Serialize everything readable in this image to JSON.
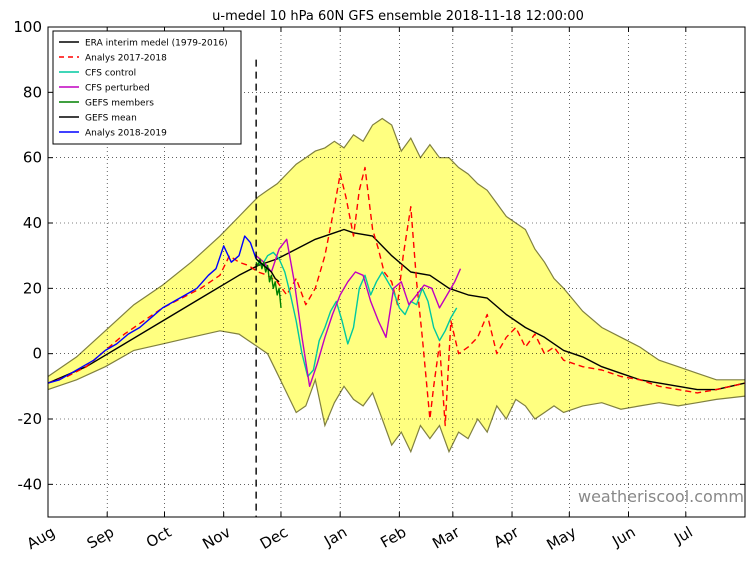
{
  "chart_data": {
    "type": "line",
    "title": "u-medel 10 hPa 60N GFS ensemble 2018-11-18 12:00:00",
    "xlabel": "",
    "ylabel": "",
    "ylim": [
      -50,
      100
    ],
    "xlim": [
      0,
      365
    ],
    "yticks": [
      -40,
      -20,
      0,
      20,
      40,
      60,
      80,
      100
    ],
    "month_ticks": [
      {
        "label": "Aug",
        "day": 0
      },
      {
        "label": "Sep",
        "day": 31
      },
      {
        "label": "Oct",
        "day": 61
      },
      {
        "label": "Nov",
        "day": 92
      },
      {
        "label": "Dec",
        "day": 122
      },
      {
        "label": "Jan",
        "day": 153
      },
      {
        "label": "Feb",
        "day": 184
      },
      {
        "label": "Mar",
        "day": 212
      },
      {
        "label": "Apr",
        "day": 243
      },
      {
        "label": "May",
        "day": 273
      },
      {
        "label": "Jun",
        "day": 304
      },
      {
        "label": "Jul",
        "day": 334
      }
    ],
    "grid": true,
    "forecast_day": 109,
    "legend_position": "top-left",
    "colors": {
      "band_fill": "#ffff80",
      "band_edge": "#808040",
      "era": "#000000",
      "analys_2017": "#ff0000",
      "cfs_control": "#00c8a0",
      "cfs_perturbed": "#c000c0",
      "gefs_members": "#008000",
      "gefs_mean": "#000000",
      "analys_2018": "#0000ff"
    },
    "band": {
      "x": [
        0,
        15,
        30,
        45,
        60,
        75,
        90,
        100,
        105,
        110,
        115,
        120,
        125,
        130,
        135,
        140,
        145,
        150,
        155,
        160,
        165,
        170,
        175,
        180,
        185,
        190,
        195,
        200,
        205,
        210,
        215,
        220,
        225,
        230,
        235,
        240,
        245,
        250,
        255,
        260,
        265,
        270,
        280,
        290,
        300,
        310,
        320,
        330,
        340,
        350,
        365
      ],
      "upper": [
        -7,
        -1,
        7,
        15,
        21,
        28,
        36,
        42,
        45,
        48,
        50,
        52,
        55,
        58,
        60,
        62,
        63,
        65,
        63,
        67,
        65,
        70,
        72,
        70,
        62,
        66,
        60,
        64,
        60,
        60,
        57,
        55,
        52,
        50,
        46,
        42,
        40,
        38,
        32,
        28,
        23,
        20,
        13,
        8,
        5,
        2,
        -2,
        -4,
        -6,
        -8,
        -8
      ],
      "lower": [
        -11,
        -8,
        -4,
        1,
        3,
        5,
        7,
        6,
        4,
        2,
        0,
        -6,
        -12,
        -18,
        -16,
        -8,
        -22,
        -15,
        -10,
        -14,
        -16,
        -12,
        -20,
        -28,
        -24,
        -30,
        -22,
        -26,
        -22,
        -30,
        -24,
        -26,
        -20,
        -24,
        -16,
        -20,
        -14,
        -16,
        -20,
        -18,
        -16,
        -18,
        -16,
        -15,
        -17,
        -16,
        -15,
        -16,
        -15,
        -14,
        -13
      ]
    },
    "series": [
      {
        "name": "ERA interim medel (1979-2016)",
        "style": "solid",
        "colorKey": "era",
        "x": [
          0,
          20,
          40,
          60,
          80,
          100,
          110,
          120,
          130,
          140,
          150,
          155,
          160,
          170,
          180,
          190,
          200,
          210,
          220,
          230,
          240,
          250,
          260,
          270,
          280,
          290,
          300,
          310,
          320,
          330,
          340,
          350,
          365
        ],
        "values": [
          -9,
          -4,
          3,
          10,
          17,
          24,
          27,
          29,
          32,
          35,
          37,
          38,
          37,
          36,
          30,
          25,
          24,
          20,
          18,
          17,
          12,
          8,
          5,
          1,
          -1,
          -4,
          -6,
          -8,
          -9,
          -10,
          -11,
          -11,
          -9
        ]
      },
      {
        "name": "Analys 2017-2018",
        "style": "dashed",
        "colorKey": "analys_2017",
        "x": [
          0,
          10,
          20,
          30,
          40,
          50,
          60,
          70,
          80,
          90,
          95,
          100,
          105,
          110,
          115,
          120,
          125,
          130,
          135,
          140,
          145,
          150,
          153,
          156,
          160,
          163,
          166,
          170,
          173,
          176,
          180,
          183,
          186,
          190,
          193,
          196,
          200,
          202,
          205,
          208,
          211,
          215,
          220,
          225,
          230,
          235,
          240,
          245,
          250,
          255,
          260,
          265,
          270,
          280,
          290,
          300,
          310,
          320,
          330,
          340,
          350,
          365
        ],
        "values": [
          -9,
          -7,
          -4,
          1,
          6,
          10,
          14,
          17,
          20,
          24,
          30,
          28,
          27,
          25,
          24,
          22,
          18,
          23,
          15,
          20,
          30,
          45,
          55,
          48,
          36,
          50,
          57,
          38,
          32,
          25,
          22,
          15,
          30,
          45,
          22,
          5,
          -20,
          -10,
          3,
          -22,
          10,
          0,
          2,
          5,
          12,
          0,
          5,
          8,
          2,
          6,
          0,
          2,
          -2,
          -4,
          -5,
          -7,
          -8,
          -10,
          -11,
          -12,
          -11,
          -9
        ]
      },
      {
        "name": "CFS control",
        "style": "solid",
        "colorKey": "cfs_control",
        "x": [
          109,
          112,
          115,
          118,
          121,
          124,
          127,
          130,
          133,
          136,
          139,
          142,
          145,
          148,
          151,
          154,
          157,
          160,
          163,
          166,
          169,
          172,
          175,
          178,
          181,
          184,
          187,
          190,
          193,
          196,
          199,
          202,
          205,
          208,
          211,
          214
        ],
        "values": [
          29,
          27,
          30,
          31,
          29,
          25,
          18,
          10,
          0,
          -7,
          -5,
          4,
          8,
          13,
          16,
          10,
          3,
          8,
          20,
          24,
          18,
          22,
          25,
          22,
          19,
          14,
          12,
          16,
          15,
          20,
          16,
          8,
          4,
          7,
          11,
          14
        ]
      },
      {
        "name": "CFS perturbed",
        "style": "solid",
        "colorKey": "cfs_perturbed",
        "x": [
          109,
          113,
          117,
          121,
          125,
          129,
          133,
          137,
          141,
          145,
          149,
          153,
          157,
          161,
          165,
          169,
          173,
          177,
          181,
          185,
          189,
          193,
          197,
          201,
          205,
          209,
          213,
          216
        ],
        "values": [
          30,
          28,
          25,
          32,
          35,
          22,
          5,
          -10,
          -3,
          5,
          12,
          18,
          22,
          25,
          24,
          16,
          10,
          5,
          20,
          22,
          15,
          18,
          21,
          20,
          14,
          18,
          22,
          26
        ]
      },
      {
        "name": "GEFS members",
        "style": "solid",
        "colorKey": "gefs_members",
        "x": [
          109,
          110,
          111,
          112,
          113,
          114,
          115,
          116,
          117,
          118,
          119,
          120,
          121,
          122
        ],
        "values": [
          28,
          27,
          29,
          26,
          28,
          25,
          27,
          22,
          24,
          20,
          22,
          18,
          20,
          14
        ]
      },
      {
        "name": "GEFS mean",
        "style": "solid",
        "colorKey": "gefs_mean",
        "x": [
          109,
          111,
          113,
          115,
          117,
          119,
          121
        ],
        "values": [
          29,
          28,
          27,
          26,
          25,
          23,
          22
        ]
      },
      {
        "name": "Analys 2018-2019",
        "style": "solid",
        "colorKey": "analys_2018",
        "x": [
          0,
          6,
          12,
          18,
          24,
          30,
          36,
          42,
          48,
          54,
          60,
          66,
          72,
          78,
          84,
          88,
          92,
          96,
          100,
          103,
          106,
          109
        ],
        "values": [
          -9,
          -8,
          -6,
          -4,
          -2,
          1,
          3,
          6,
          8,
          11,
          14,
          16,
          18,
          20,
          24,
          26,
          33,
          28,
          30,
          36,
          34,
          29
        ]
      }
    ],
    "watermark": "weatheriscool.comm"
  }
}
